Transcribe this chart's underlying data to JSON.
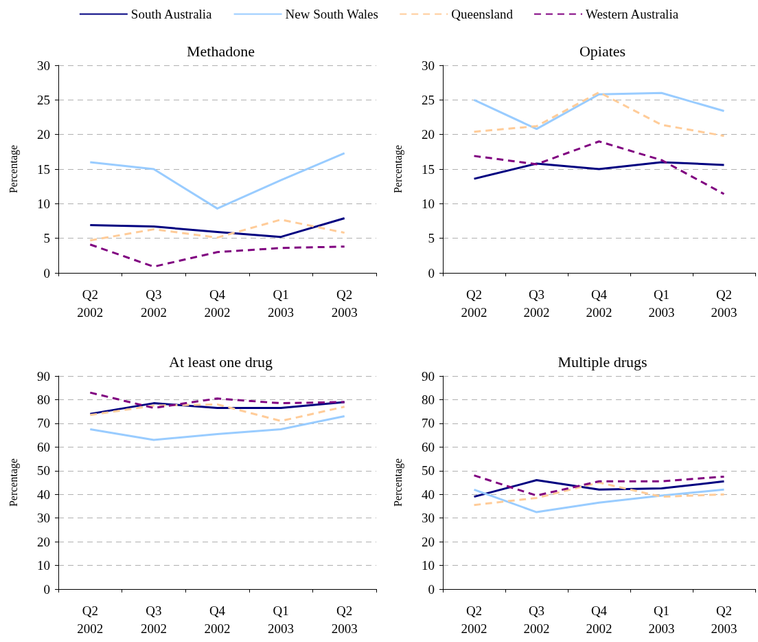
{
  "chart_data": [
    {
      "type": "line",
      "title": "Methadone",
      "ylabel": "Percentage",
      "categories": [
        "Q2\n2002",
        "Q3\n2002",
        "Q4\n2002",
        "Q1\n2003",
        "Q2\n2003"
      ],
      "ylim": [
        0,
        30
      ],
      "yticks": [
        0,
        5,
        10,
        15,
        20,
        25,
        30
      ],
      "grid": "y",
      "legend": "top",
      "series": [
        {
          "name": "South Australia",
          "color": "#000080",
          "line_style": "solid",
          "values": [
            6.9,
            6.7,
            5.9,
            5.2,
            7.9
          ]
        },
        {
          "name": "New South Wales",
          "color": "#99ccff",
          "line_style": "solid",
          "values": [
            16,
            15,
            9.3,
            13.4,
            17.3
          ]
        },
        {
          "name": "Queensland",
          "color": "#ffcc99",
          "line_style": "dashed",
          "values": [
            4.7,
            6.3,
            5.1,
            7.7,
            5.8
          ]
        },
        {
          "name": "Western Australia",
          "color": "#800080",
          "line_style": "dashed",
          "values": [
            4.1,
            0.9,
            3.0,
            3.6,
            3.8
          ]
        }
      ]
    },
    {
      "type": "line",
      "title": "Opiates",
      "ylabel": "Percentage",
      "categories": [
        "Q2\n2002",
        "Q3\n2002",
        "Q4\n2002",
        "Q1\n2003",
        "Q2\n2003"
      ],
      "ylim": [
        0,
        30
      ],
      "yticks": [
        0,
        5,
        10,
        15,
        20,
        25,
        30
      ],
      "grid": "y",
      "series": [
        {
          "color": "#000080",
          "line_style": "solid",
          "values": [
            13.6,
            15.8,
            15.0,
            16.0,
            15.6
          ]
        },
        {
          "color": "#99ccff",
          "line_style": "solid",
          "values": [
            25,
            20.8,
            25.8,
            26,
            23.4
          ]
        },
        {
          "color": "#ffcc99",
          "line_style": "dashed",
          "values": [
            20.4,
            21.2,
            26.1,
            21.4,
            19.8
          ]
        },
        {
          "color": "#800080",
          "line_style": "dashed",
          "values": [
            16.9,
            15.7,
            19.0,
            16.3,
            11.4
          ]
        }
      ]
    },
    {
      "type": "line",
      "title": "At least one drug",
      "ylabel": "Percentage",
      "categories": [
        "Q2\n2002",
        "Q3\n2002",
        "Q4\n2002",
        "Q1\n2003",
        "Q2\n2003"
      ],
      "ylim": [
        0,
        90
      ],
      "yticks": [
        0,
        10,
        20,
        30,
        40,
        50,
        60,
        70,
        80,
        90
      ],
      "grid": "y",
      "series": [
        {
          "color": "#000080",
          "line_style": "solid",
          "values": [
            74,
            78.5,
            76.5,
            76.5,
            79
          ]
        },
        {
          "color": "#99ccff",
          "line_style": "solid",
          "values": [
            67.5,
            63,
            65.5,
            67.5,
            73
          ]
        },
        {
          "color": "#ffcc99",
          "line_style": "dashed",
          "values": [
            73.5,
            77.5,
            78,
            71,
            77
          ]
        },
        {
          "color": "#800080",
          "line_style": "dashed",
          "values": [
            83,
            76.5,
            80.5,
            78.5,
            79
          ]
        }
      ]
    },
    {
      "type": "line",
      "title": "Multiple drugs",
      "ylabel": "Percentage",
      "categories": [
        "Q2\n2002",
        "Q3\n2002",
        "Q4\n2002",
        "Q1\n2003",
        "Q2\n2003"
      ],
      "ylim": [
        0,
        90
      ],
      "yticks": [
        0,
        10,
        20,
        30,
        40,
        50,
        60,
        70,
        80,
        90
      ],
      "grid": "y",
      "series": [
        {
          "color": "#000080",
          "line_style": "solid",
          "values": [
            39,
            46,
            42,
            42.5,
            45.5
          ]
        },
        {
          "color": "#99ccff",
          "line_style": "solid",
          "values": [
            42,
            32.5,
            36.5,
            39.5,
            42
          ]
        },
        {
          "color": "#ffcc99",
          "line_style": "dashed",
          "values": [
            35.5,
            38.5,
            45,
            39,
            40
          ]
        },
        {
          "color": "#800080",
          "line_style": "dashed",
          "values": [
            48,
            39.5,
            45.5,
            45.5,
            47.5
          ]
        }
      ]
    }
  ]
}
